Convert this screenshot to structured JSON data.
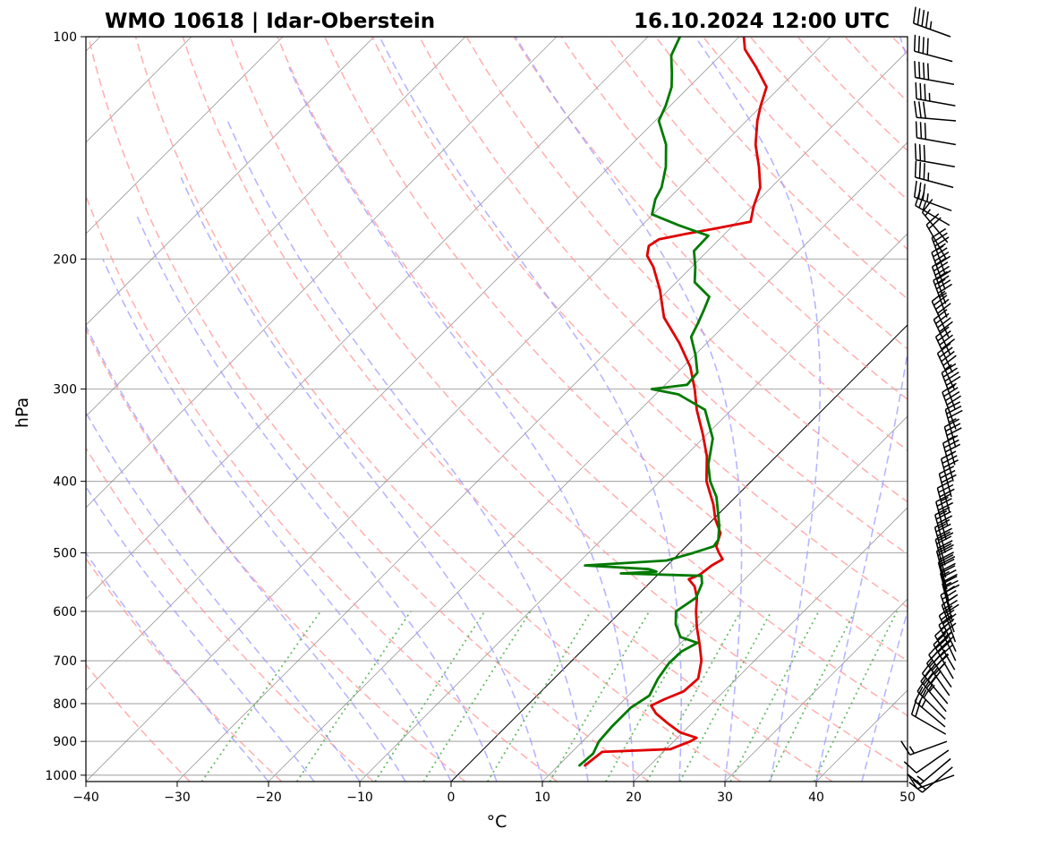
{
  "chart_data": {
    "type": "skew-t",
    "title_left": "WMO 10618 | Idar-Oberstein",
    "title_right": "16.10.2024 12:00 UTC",
    "xlabel": "°C",
    "ylabel": "hPa",
    "xlim": [
      -40,
      50
    ],
    "ylim": [
      1020,
      100
    ],
    "log_pressure_axis": true,
    "grid": true,
    "x_ticks": [
      "−40",
      "−30",
      "−20",
      "−10",
      "0",
      "10",
      "20",
      "30",
      "40",
      "50"
    ],
    "x_tick_values": [
      -40,
      -30,
      -20,
      -10,
      0,
      10,
      20,
      30,
      40,
      50
    ],
    "y_ticks": [
      "100",
      "200",
      "300",
      "400",
      "500",
      "600",
      "700",
      "800",
      "900",
      "1000"
    ],
    "y_tick_values": [
      100,
      200,
      300,
      400,
      500,
      600,
      700,
      800,
      900,
      1000
    ],
    "colors": {
      "temperature": "#e00000",
      "dewpoint": "#007a00",
      "dry_adiabats": "#ff9a9a",
      "moist_adiabats": "#9e9eff",
      "mixing_ratio": "#4caf4c",
      "isotherms": "#888888",
      "zero_isotherm": "#000000"
    },
    "series": [
      {
        "kind": "temperature",
        "points": [
          [
            970,
            12.9
          ],
          [
            930,
            13.3
          ],
          [
            922,
            20.5
          ],
          [
            915,
            20.9
          ],
          [
            900,
            21.8
          ],
          [
            890,
            22.1
          ],
          [
            875,
            19.7
          ],
          [
            850,
            17.3
          ],
          [
            825,
            15.0
          ],
          [
            805,
            13.6
          ],
          [
            790,
            14.3
          ],
          [
            770,
            15.6
          ],
          [
            740,
            15.8
          ],
          [
            700,
            14.2
          ],
          [
            665,
            12.2
          ],
          [
            630,
            10.0
          ],
          [
            600,
            8.2
          ],
          [
            575,
            6.8
          ],
          [
            555,
            5.3
          ],
          [
            543,
            3.9
          ],
          [
            535,
            4.6
          ],
          [
            520,
            4.9
          ],
          [
            510,
            5.4
          ],
          [
            500,
            4.3
          ],
          [
            490,
            3.3
          ],
          [
            470,
            2.3
          ],
          [
            450,
            0.2
          ],
          [
            430,
            -1.6
          ],
          [
            400,
            -4.9
          ],
          [
            370,
            -7.6
          ],
          [
            345,
            -10.5
          ],
          [
            320,
            -13.8
          ],
          [
            300,
            -16.3
          ],
          [
            280,
            -19.2
          ],
          [
            260,
            -23.0
          ],
          [
            240,
            -27.5
          ],
          [
            220,
            -31.0
          ],
          [
            205,
            -34.2
          ],
          [
            198,
            -36.1
          ],
          [
            192,
            -37.0
          ],
          [
            188,
            -36.6
          ],
          [
            185,
            -34.3
          ],
          [
            182,
            -31.7
          ],
          [
            178,
            -28.5
          ],
          [
            170,
            -29.8
          ],
          [
            160,
            -31.2
          ],
          [
            150,
            -33.6
          ],
          [
            140,
            -36.4
          ],
          [
            130,
            -38.8
          ],
          [
            124,
            -40.1
          ],
          [
            117,
            -41.5
          ],
          [
            110,
            -44.8
          ],
          [
            104,
            -48.0
          ],
          [
            100,
            -49.5
          ]
        ]
      },
      {
        "kind": "dewpoint",
        "points": [
          [
            970,
            12.3
          ],
          [
            935,
            12.5
          ],
          [
            900,
            11.8
          ],
          [
            860,
            11.6
          ],
          [
            810,
            11.6
          ],
          [
            780,
            12.3
          ],
          [
            740,
            11.4
          ],
          [
            705,
            10.9
          ],
          [
            680,
            11.0
          ],
          [
            662,
            11.8
          ],
          [
            650,
            9.3
          ],
          [
            625,
            7.4
          ],
          [
            600,
            6.0
          ],
          [
            575,
            6.7
          ],
          [
            550,
            5.8
          ],
          [
            537,
            4.9
          ],
          [
            533,
            -4.2
          ],
          [
            530,
            -0.5
          ],
          [
            526,
            -1.6
          ],
          [
            520,
            -9.0
          ],
          [
            512,
            -0.6
          ],
          [
            500,
            1.5
          ],
          [
            490,
            3.0
          ],
          [
            480,
            2.8
          ],
          [
            460,
            1.4
          ],
          [
            440,
            -0.3
          ],
          [
            420,
            -2.1
          ],
          [
            400,
            -4.5
          ],
          [
            380,
            -6.5
          ],
          [
            350,
            -8.9
          ],
          [
            320,
            -12.9
          ],
          [
            305,
            -17.5
          ],
          [
            300,
            -21.0
          ],
          [
            296,
            -17.6
          ],
          [
            285,
            -17.8
          ],
          [
            270,
            -19.9
          ],
          [
            255,
            -22.4
          ],
          [
            245,
            -23.1
          ],
          [
            235,
            -23.9
          ],
          [
            225,
            -24.8
          ],
          [
            215,
            -28.0
          ],
          [
            205,
            -29.6
          ],
          [
            195,
            -31.5
          ],
          [
            186,
            -31.6
          ],
          [
            180,
            -36.0
          ],
          [
            174,
            -40.1
          ],
          [
            166,
            -41.4
          ],
          [
            160,
            -42.0
          ],
          [
            150,
            -43.8
          ],
          [
            140,
            -46.2
          ],
          [
            130,
            -49.6
          ],
          [
            124,
            -50.5
          ],
          [
            117,
            -51.9
          ],
          [
            112,
            -53.4
          ],
          [
            106,
            -55.4
          ],
          [
            100,
            -56.5
          ]
        ]
      }
    ],
    "wind_barbs": {
      "pressures": [
        100,
        108,
        116,
        124,
        130,
        140,
        150,
        160,
        172,
        180,
        190,
        200,
        210,
        220,
        230,
        240,
        255,
        270,
        285,
        300,
        320,
        340,
        360,
        380,
        400,
        420,
        440,
        460,
        480,
        500,
        520,
        540,
        560,
        580,
        600,
        620,
        640,
        660,
        680,
        700,
        720,
        740,
        760,
        780,
        800,
        820,
        840,
        860,
        880,
        900,
        925,
        950,
        975,
        1000
      ],
      "speeds_kt": [
        45,
        40,
        40,
        35,
        30,
        30,
        30,
        35,
        35,
        25,
        15,
        20,
        35,
        40,
        45,
        45,
        40,
        40,
        40,
        45,
        45,
        40,
        35,
        35,
        35,
        30,
        30,
        35,
        35,
        35,
        40,
        40,
        40,
        35,
        35,
        30,
        30,
        30,
        30,
        35,
        40,
        45,
        45,
        40,
        40,
        35,
        30,
        25,
        20,
        15,
        10,
        15,
        20,
        15
      ],
      "directions_deg": [
        290,
        285,
        280,
        280,
        275,
        280,
        280,
        285,
        290,
        300,
        320,
        330,
        340,
        340,
        340,
        340,
        335,
        335,
        335,
        335,
        340,
        340,
        345,
        345,
        345,
        345,
        345,
        345,
        345,
        345,
        345,
        345,
        345,
        345,
        345,
        345,
        340,
        340,
        335,
        335,
        330,
        330,
        325,
        325,
        320,
        320,
        315,
        310,
        300,
        250,
        235,
        230,
        230,
        250
      ]
    }
  }
}
